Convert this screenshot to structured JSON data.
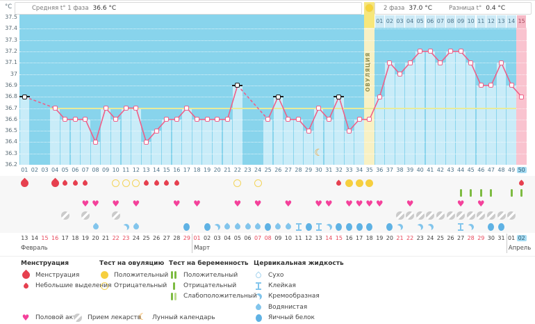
{
  "header": {
    "unit": "°C",
    "avg1_label": "Средняя t° 1 фаза",
    "avg1_value": "36.6 °C",
    "phase2_label": "2 фаза",
    "phase2_value": "37.0 °C",
    "diff_label": "Разница t°",
    "diff_value": "0.4 °C",
    "ovulation_label": "ОВУЛЯЦИЯ"
  },
  "phase2_row": {
    "labels": [
      "01",
      "02",
      "03",
      "04",
      "05",
      "06",
      "07",
      "08",
      "09",
      "10",
      "11",
      "12",
      "13",
      "14",
      "15"
    ],
    "highlight_label": "15"
  },
  "chart_data": {
    "type": "line",
    "title": "",
    "ylabel": "°C",
    "ylim": [
      36.2,
      37.5
    ],
    "yticks": [
      "37.5",
      "37.4",
      "37.3",
      "37.2",
      "37.1",
      "37",
      "36.9",
      "36.8",
      "36.7",
      "36.6",
      "36.5",
      "36.4",
      "36.3",
      "36.2"
    ],
    "x_days": [
      "01",
      "02",
      "03",
      "04",
      "05",
      "06",
      "07",
      "08",
      "09",
      "10",
      "11",
      "12",
      "13",
      "14",
      "15",
      "16",
      "17",
      "18",
      "19",
      "20",
      "21",
      "22",
      "23",
      "24",
      "25",
      "26",
      "27",
      "28",
      "29",
      "30",
      "31",
      "32",
      "33",
      "34",
      "35",
      "36",
      "37",
      "38",
      "39",
      "40",
      "41",
      "42",
      "43",
      "44",
      "45",
      "46",
      "47",
      "48",
      "49",
      "50"
    ],
    "temps": [
      [
        1,
        36.8
      ],
      [
        4,
        36.7
      ],
      [
        5,
        36.6
      ],
      [
        6,
        36.6
      ],
      [
        7,
        36.6
      ],
      [
        8,
        36.4
      ],
      [
        9,
        36.7
      ],
      [
        10,
        36.6
      ],
      [
        11,
        36.7
      ],
      [
        12,
        36.7
      ],
      [
        13,
        36.4
      ],
      [
        14,
        36.5
      ],
      [
        15,
        36.6
      ],
      [
        16,
        36.6
      ],
      [
        17,
        36.7
      ],
      [
        18,
        36.6
      ],
      [
        19,
        36.6
      ],
      [
        20,
        36.6
      ],
      [
        21,
        36.6
      ],
      [
        22,
        36.9
      ],
      [
        25,
        36.6
      ],
      [
        26,
        36.8
      ],
      [
        27,
        36.6
      ],
      [
        28,
        36.6
      ],
      [
        29,
        36.5
      ],
      [
        30,
        36.7
      ],
      [
        31,
        36.6
      ],
      [
        32,
        36.8
      ],
      [
        33,
        36.5
      ],
      [
        34,
        36.6
      ],
      [
        35,
        36.6
      ],
      [
        36,
        36.8
      ],
      [
        37,
        37.1
      ],
      [
        38,
        37.0
      ],
      [
        39,
        37.1
      ],
      [
        40,
        37.2
      ],
      [
        41,
        37.2
      ],
      [
        42,
        37.1
      ],
      [
        43,
        37.2
      ],
      [
        44,
        37.2
      ],
      [
        45,
        37.1
      ],
      [
        46,
        36.9
      ],
      [
        47,
        36.9
      ],
      [
        48,
        37.1
      ],
      [
        49,
        36.9
      ],
      [
        50,
        36.8
      ]
    ],
    "flagged_days": [
      1,
      22,
      26,
      32
    ],
    "missing_days": [
      2,
      3,
      23,
      24
    ],
    "coverline": 36.7,
    "ovulation_day": 35,
    "highlight_day": 50,
    "lunar_day": 30
  },
  "tracks": {
    "menstruation_heavy": [
      1,
      4
    ],
    "menstruation_light": [
      5,
      6,
      7,
      13,
      14,
      15,
      16,
      32,
      50
    ],
    "ovulation_test_negative": [
      10,
      11,
      12,
      22,
      24
    ],
    "ovulation_test_positive": [
      33,
      34,
      35
    ],
    "pregnancy_test_negative": [
      44,
      45,
      46,
      47,
      49,
      50
    ],
    "intercourse": [
      7,
      8,
      10,
      12,
      16,
      18,
      22,
      24,
      27,
      30,
      31,
      33,
      34,
      35,
      36,
      39,
      44,
      46
    ],
    "medication": [
      5,
      7,
      10,
      38,
      39,
      40,
      41,
      42,
      43,
      44,
      45,
      46,
      47,
      48,
      49
    ],
    "cervical_fluid": {
      "8": "watery",
      "11": "creamy",
      "12": "watery",
      "17": "eggwhite",
      "19": "eggwhite",
      "20": "creamy",
      "21": "watery",
      "22": "watery",
      "23": "watery",
      "24": "watery",
      "25": "eggwhite",
      "26": "watery",
      "27": "watery",
      "28": "sticky",
      "29": "eggwhite",
      "30": "sticky",
      "31": "creamy",
      "32": "eggwhite",
      "33": "eggwhite",
      "34": "eggwhite",
      "35": "eggwhite",
      "37": "eggwhite",
      "38": "creamy",
      "40": "creamy",
      "41": "creamy",
      "44": "sticky",
      "45": "creamy",
      "47": "eggwhite",
      "48": "eggwhite"
    }
  },
  "calendar": {
    "months": [
      {
        "name": "Февраль",
        "dates": [
          "13",
          "14",
          "15",
          "16",
          "17",
          "18",
          "19",
          "20",
          "21",
          "22",
          "23",
          "24",
          "25",
          "26",
          "27",
          "28",
          "29"
        ],
        "red": [
          "15",
          "16",
          "22",
          "23",
          "29"
        ]
      },
      {
        "name": "Март",
        "dates": [
          "01",
          "02",
          "03",
          "04",
          "05",
          "06",
          "07",
          "08",
          "09",
          "10",
          "11",
          "12",
          "13",
          "14",
          "15",
          "16",
          "17",
          "18",
          "19",
          "20",
          "21",
          "22",
          "23",
          "24",
          "25",
          "26",
          "27",
          "28",
          "29",
          "30",
          "31"
        ],
        "red": [
          "01",
          "07",
          "08",
          "14",
          "15",
          "21",
          "22",
          "28",
          "29"
        ]
      },
      {
        "name": "Апрель",
        "dates": [
          "01",
          "02"
        ],
        "red": [],
        "highlight": "02"
      }
    ]
  },
  "legend": {
    "menstruation": {
      "title": "Менструация",
      "items": [
        {
          "icon": "drop-large",
          "label": "Менструация"
        },
        {
          "icon": "drop-small",
          "label": "Небольшие выделения"
        }
      ]
    },
    "ovulation_test": {
      "title": "Тест на овуляцию",
      "items": [
        {
          "icon": "circle-filled",
          "label": "Положительный"
        },
        {
          "icon": "circle-outline",
          "label": "Отрицательный"
        }
      ]
    },
    "pregnancy_test": {
      "title": "Тест на беременность",
      "items": [
        {
          "icon": "bars-2",
          "label": "Положительный"
        },
        {
          "icon": "bar-1",
          "label": "Отрицательный"
        },
        {
          "icon": "bars-2-weak",
          "label": "Слабоположительный"
        }
      ]
    },
    "cervical": {
      "title": "Цервикальная жидкость",
      "items": [
        {
          "icon": "dry",
          "label": "Сухо"
        },
        {
          "icon": "sticky",
          "label": "Клейкая"
        },
        {
          "icon": "creamy",
          "label": "Кремообразная"
        },
        {
          "icon": "watery",
          "label": "Водянистая"
        },
        {
          "icon": "eggwhite",
          "label": "Яичный белок"
        }
      ]
    },
    "extra": [
      {
        "icon": "heart",
        "label": "Половой акт"
      },
      {
        "icon": "pill",
        "label": "Прием лекарств"
      },
      {
        "icon": "moon",
        "label": "Лунный календарь"
      }
    ]
  },
  "icons": {
    "heart": "♥",
    "moon": "☾"
  },
  "colors": {
    "chart_bg": "#88d4ec",
    "bar": "#c9ecf8",
    "ovulation_band": "#f8f1c4",
    "ovulation_band_top": "#f7e77b",
    "pink_column": "#f9c3cf",
    "phase2_cell": "#cdeaf6",
    "phase2_cell_highlight": "#f6bac7",
    "line": "#ee5f88",
    "flag": "#1b1b1b",
    "coverline": "#e9eb9a",
    "menstruation": "#e6404f",
    "ovulation_test": "#f6cf3f",
    "pregnancy_test": "#7dbb41",
    "intercourse": "#f4419b",
    "medication": "#cbcbcb",
    "cervical": "#82c5ec",
    "eggwhite": "#5fb2e4",
    "moon": "#f0a132",
    "highlight": "#a6dbf2"
  }
}
